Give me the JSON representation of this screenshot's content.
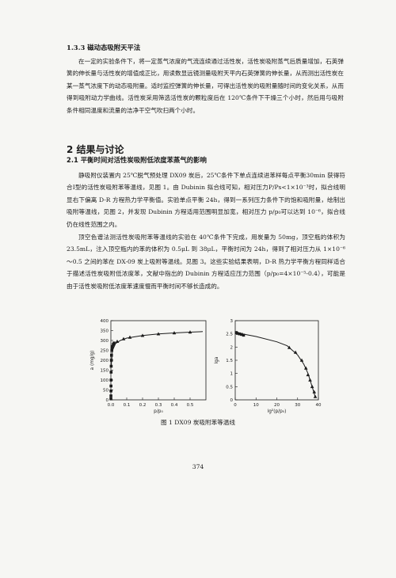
{
  "section_133": "1.3.3 磁动态吸附天平法",
  "para1": "在一定的实验条件下，将一定蒸气浓度的气流连续通过活性炭，活性炭吸附蒸气后质量增加，石英弹簧的伸长量与活性炭的增值成正比，用读数显远镜测量吸附天平内石英弹簧的伸长量，从而测出活性炭在某一蒸气浓度下的动态吸附量。适时监控弹簧的伸长量，可得出活性炭的吸附量随时间的变化关系，从而得到吸附动力学曲线。活性炭采用筛选活性炭的颗粒度后在 120℃条件下干燥三个小时，然后用与吸附条件相同温度和流量的洁净干空气吹扫两个小时。",
  "heading2": "2 结果与讨论",
  "heading21": "2.1 平衡时间对活性炭吸附低浓度苯蒸气的影响",
  "para2": "静吸附仪装置内 25℃脱气预处理 DX09 炭后，25℃条件下单点连续进苯样每点平衡30min 获得符合Ⅰ型的活性炭吸附苯等温线，见图 1。由 Dubinin 拟合线可知，相对压力P/Ps<1×10⁻³时，拟合线明显右下偏离 D-R 方程热力学平衡值。实验单点平衡 24h，得到一系列压力条件下的饱和吸附量，绘制出吸附等温线，见图 2，并发现 Dubinin 方程适用范围明显加宽，相对压力 p/p₀可以达到 10⁻⁶，拟合线仍在线性范围之内。",
  "para3": "顶空色谱法测活性炭吸附苯等温线的实验在 40℃条件下完成，用炭量为 50mg，顶空瓶的体积为 23.5mL，注入顶空瓶内的苯的体积为 0.5μL 到 38μL，平衡时间为 24h，得到了相对压力从 1×10⁻⁶～0.5 之间的苯在 DX-09 炭上吸附等温线。见图 3。这些实验结果表明，D-R 热力学平衡方程同样适合于描述活性炭吸附低浓度苯，文献中指出的 Dubinin 方程适应压力范围（p/p₀=4×10⁻⁵-0.4），可能是由于活性炭吸附低浓度苯速度慢而平衡时间不够长造成的。",
  "figure_caption": "图 1 DX09 炭吸附苯等温线",
  "page_number": "374",
  "colors": {
    "ink": "#1b1b1b",
    "paper": "#f6f6f3"
  },
  "chart_data": [
    {
      "type": "scatter",
      "title": "",
      "xlabel": "p/p₀",
      "ylabel": "a (mg/g)",
      "xlim": [
        0,
        0.6
      ],
      "ylim": [
        0,
        400
      ],
      "xticks": [
        "0.0",
        "0.1",
        "0.2",
        "0.3",
        "0.4",
        "0.5"
      ],
      "yticks": [
        "0",
        "50",
        "100",
        "150",
        "200",
        "250",
        "300",
        "350",
        "400"
      ],
      "grid": false,
      "series": [
        {
          "marker": "square",
          "points": [
            [
              0.0002,
              5
            ],
            [
              0.0004,
              20
            ],
            [
              0.0006,
              45
            ],
            [
              0.0008,
              70
            ],
            [
              0.001,
              100
            ],
            [
              0.0015,
              140
            ],
            [
              0.002,
              170
            ],
            [
              0.003,
              200
            ],
            [
              0.004,
              225
            ],
            [
              0.006,
              250
            ],
            [
              0.008,
              262
            ],
            [
              0.01,
              270
            ],
            [
              0.015,
              280
            ],
            [
              0.02,
              287
            ]
          ]
        },
        {
          "marker": "triangle",
          "points": [
            [
              0.04,
              295
            ],
            [
              0.08,
              308
            ],
            [
              0.12,
              316
            ],
            [
              0.2,
              325
            ],
            [
              0.3,
              333
            ],
            [
              0.4,
              338
            ],
            [
              0.5,
              342
            ]
          ]
        }
      ],
      "fit_line": [
        [
          0.002,
          170
        ],
        [
          0.01,
          250
        ],
        [
          0.03,
          285
        ],
        [
          0.06,
          300
        ],
        [
          0.1,
          312
        ],
        [
          0.2,
          325
        ],
        [
          0.3,
          333
        ],
        [
          0.4,
          338
        ],
        [
          0.5,
          342
        ],
        [
          0.58,
          345
        ]
      ]
    },
    {
      "type": "scatter",
      "title": "",
      "xlabel": "lg²(p/p₀)",
      "ylabel": "lga",
      "xlim": [
        0,
        40
      ],
      "ylim": [
        0,
        3
      ],
      "xticks": [
        "0",
        "10",
        "20",
        "30",
        "40"
      ],
      "yticks": [
        "0",
        "0.5",
        "1",
        "1.5",
        "2",
        "2.5",
        "3"
      ],
      "grid": false,
      "series": [
        {
          "marker": "square",
          "points": [
            [
              0.5,
              2.55
            ],
            [
              1,
              2.52
            ],
            [
              2,
              2.5
            ],
            [
              3,
              2.48
            ],
            [
              4,
              2.45
            ]
          ]
        },
        {
          "marker": "triangle",
          "points": [
            [
              26,
              1.98
            ],
            [
              29,
              1.8
            ],
            [
              32,
              1.5
            ],
            [
              34,
              1.2
            ],
            [
              35,
              0.95
            ],
            [
              36,
              0.75
            ],
            [
              37,
              0.5
            ],
            [
              38,
              0.3
            ],
            [
              38.5,
              0.12
            ]
          ]
        }
      ],
      "fit_line": [
        [
          0,
          2.55
        ],
        [
          10,
          2.4
        ],
        [
          20,
          2.2
        ],
        [
          25,
          2.05
        ],
        [
          30,
          1.7
        ],
        [
          33,
          1.35
        ],
        [
          35,
          1.0
        ],
        [
          37,
          0.5
        ],
        [
          38.5,
          0.1
        ]
      ]
    }
  ]
}
